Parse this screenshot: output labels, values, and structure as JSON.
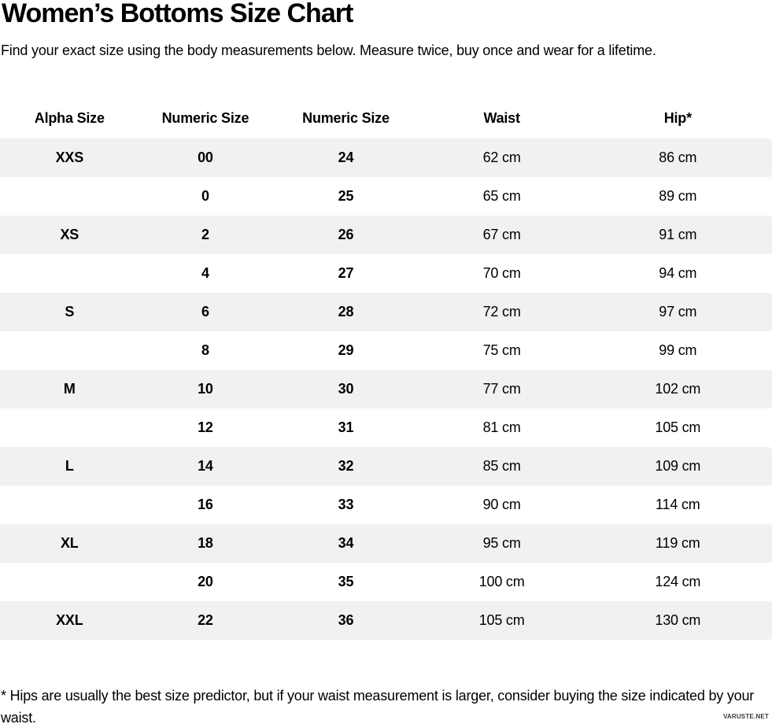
{
  "page": {
    "title": "Women’s Bottoms Size Chart",
    "subtitle": "Find your exact size using the body measurements below. Measure twice, buy once and wear for a lifetime.",
    "footnote": "* Hips are usually the best size predictor, but if your waist measurement is larger, consider buying the size indicated by your waist.",
    "watermark": "VARUSTE.NET"
  },
  "chart_data": {
    "type": "table",
    "title": "Women’s Bottoms Size Chart",
    "columns": [
      "Alpha Size",
      "Numeric Size",
      "Numeric Size",
      "Waist",
      "Hip*"
    ],
    "rows": [
      [
        "XXS",
        "00",
        "24",
        "62 cm",
        "86 cm"
      ],
      [
        "",
        "0",
        "25",
        "65 cm",
        "89 cm"
      ],
      [
        "XS",
        "2",
        "26",
        "67 cm",
        "91 cm"
      ],
      [
        "",
        "4",
        "27",
        "70 cm",
        "94 cm"
      ],
      [
        "S",
        "6",
        "28",
        "72 cm",
        "97 cm"
      ],
      [
        "",
        "8",
        "29",
        "75 cm",
        "99 cm"
      ],
      [
        "M",
        "10",
        "30",
        "77 cm",
        "102 cm"
      ],
      [
        "",
        "12",
        "31",
        "81 cm",
        "105 cm"
      ],
      [
        "L",
        "14",
        "32",
        "85 cm",
        "109 cm"
      ],
      [
        "",
        "16",
        "33",
        "90 cm",
        "114 cm"
      ],
      [
        "XL",
        "18",
        "34",
        "95 cm",
        "119 cm"
      ],
      [
        "",
        "20",
        "35",
        "100 cm",
        "124 cm"
      ],
      [
        "XXL",
        "22",
        "36",
        "105 cm",
        "130 cm"
      ]
    ],
    "layout": {
      "striped_rows": "odd",
      "stripe_color": "#f1f1f1",
      "text_color": "#000000",
      "bold_columns": [
        0,
        1,
        2
      ],
      "grid": "none",
      "legend": "none"
    }
  }
}
